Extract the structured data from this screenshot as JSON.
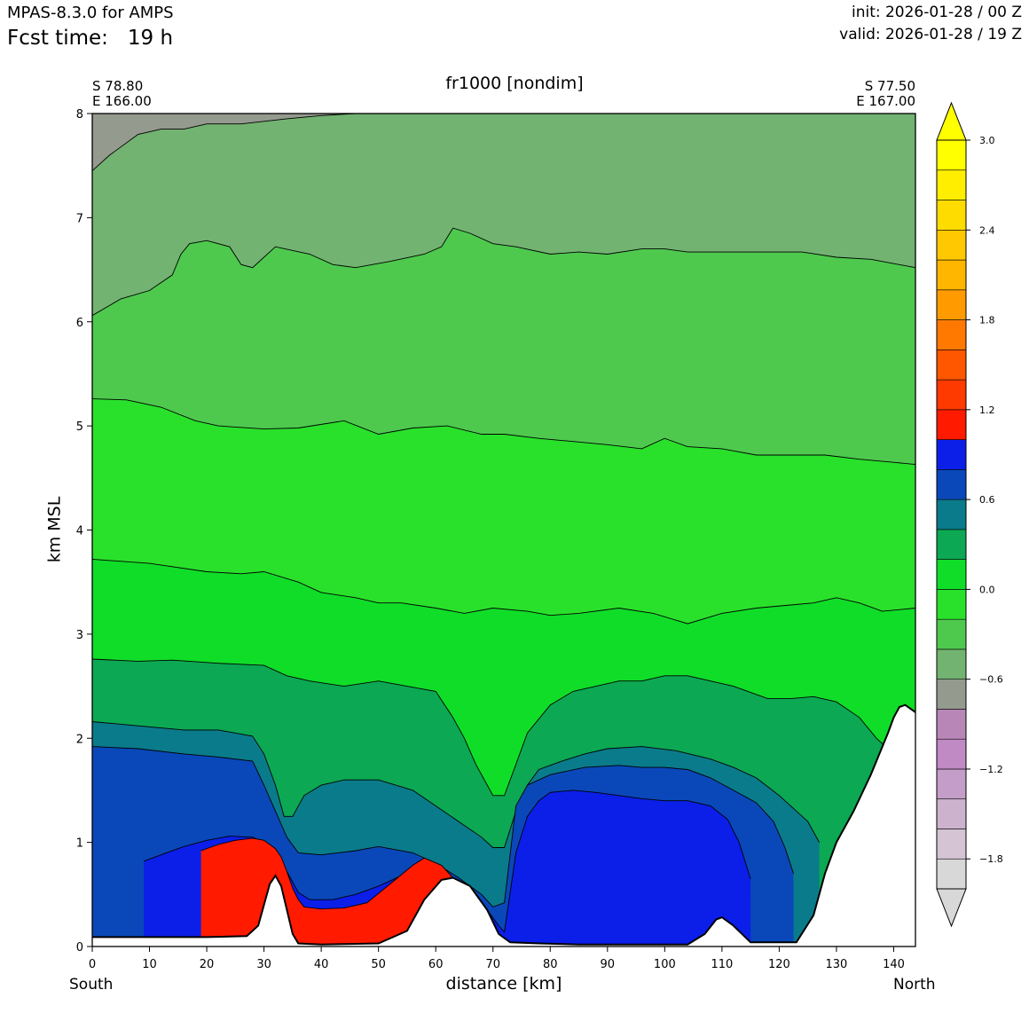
{
  "header": {
    "model": "MPAS-8.3.0 for AMPS",
    "fcst_label": "Fcst time:",
    "fcst_value": "19 h",
    "init": "init: 2026-01-28 / 00 Z",
    "valid": "valid: 2026-01-28 / 19 Z"
  },
  "endpoints": {
    "left_lat": "S 78.80",
    "left_lon": "E 166.00",
    "right_lat": "S 77.50",
    "right_lon": "E 167.00",
    "left_dir": "South",
    "right_dir": "North"
  },
  "chart_data": {
    "type": "contour-cross-section",
    "title": "fr1000 [nondim]",
    "xlabel": "distance [km]",
    "ylabel": "km MSL",
    "xlim": [
      0,
      143.8
    ],
    "ylim": [
      0,
      8
    ],
    "x_ticks": [
      0,
      10,
      20,
      30,
      40,
      50,
      60,
      70,
      80,
      90,
      100,
      110,
      120,
      130,
      140
    ],
    "y_ticks": [
      0,
      1,
      2,
      3,
      4,
      5,
      6,
      7,
      8
    ],
    "colorbar": {
      "levels": [
        -2.0,
        -1.8,
        -1.6,
        -1.4,
        -1.2,
        -1.0,
        -0.8,
        -0.6,
        -0.4,
        -0.2,
        0.0,
        0.2,
        0.4,
        0.6,
        0.8,
        1.0,
        1.2,
        1.4,
        1.6,
        1.8,
        2.0,
        2.2,
        2.4,
        2.6,
        2.8,
        3.0
      ],
      "tick_labels": [
        "−1.8",
        "−1.2",
        "−0.6",
        "0.0",
        "0.6",
        "1.2",
        "1.8",
        "2.4",
        "3.0"
      ],
      "tick_values": [
        -1.8,
        -1.2,
        -0.6,
        0.0,
        0.6,
        1.2,
        1.8,
        2.4,
        3.0
      ],
      "colors": [
        "#d8d8d8",
        "#d4c4d4",
        "#ccb2cc",
        "#c49ec8",
        "#c08ac4",
        "#b887b8",
        "#959a8f",
        "#72b371",
        "#4ec94e",
        "#29e12b",
        "#10dd28",
        "#0ca853",
        "#0a7b8a",
        "#0a48b9",
        "#0b1fe9",
        "#ff1a00",
        "#ff3a00",
        "#ff5700",
        "#ff7900",
        "#ff9a00",
        "#ffb600",
        "#ffc800",
        "#ffdc00",
        "#ffee00",
        "#ffff00"
      ],
      "under_color": "#d8d8d8",
      "over_color": "#ffff00"
    },
    "terrain": [
      [
        0,
        0.09
      ],
      [
        10,
        0.09
      ],
      [
        20,
        0.09
      ],
      [
        27,
        0.1
      ],
      [
        29,
        0.2
      ],
      [
        31,
        0.6
      ],
      [
        32,
        0.68
      ],
      [
        33,
        0.58
      ],
      [
        35,
        0.12
      ],
      [
        36,
        0.03
      ],
      [
        40,
        0.02
      ],
      [
        50,
        0.03
      ],
      [
        55,
        0.15
      ],
      [
        58,
        0.45
      ],
      [
        61,
        0.64
      ],
      [
        63,
        0.66
      ],
      [
        66,
        0.58
      ],
      [
        69,
        0.35
      ],
      [
        71,
        0.12
      ],
      [
        73,
        0.04
      ],
      [
        78,
        0.03
      ],
      [
        85,
        0.02
      ],
      [
        95,
        0.02
      ],
      [
        104,
        0.02
      ],
      [
        107,
        0.12
      ],
      [
        109,
        0.26
      ],
      [
        110,
        0.28
      ],
      [
        112,
        0.2
      ],
      [
        115,
        0.04
      ],
      [
        123,
        0.04
      ],
      [
        126,
        0.3
      ],
      [
        128,
        0.7
      ],
      [
        130,
        1.0
      ],
      [
        133,
        1.3
      ],
      [
        136,
        1.65
      ],
      [
        139,
        2.05
      ],
      [
        140,
        2.2
      ],
      [
        141,
        2.3
      ],
      [
        142,
        2.32
      ],
      [
        143.8,
        2.25
      ]
    ],
    "layers": [
      {
        "level": "-0.6",
        "color": "#959a8f",
        "top": [
          [
            0,
            8
          ],
          [
            143.8,
            8
          ]
        ]
      },
      {
        "level": "-0.4",
        "color": "#72b371",
        "top": [
          [
            0,
            7.45
          ],
          [
            3,
            7.6
          ],
          [
            8,
            7.8
          ],
          [
            12,
            7.85
          ],
          [
            16,
            7.85
          ],
          [
            20,
            7.9
          ],
          [
            26,
            7.9
          ],
          [
            34,
            7.95
          ],
          [
            40,
            7.98
          ],
          [
            46,
            8
          ],
          [
            143.8,
            8
          ]
        ]
      },
      {
        "level": "-0.2",
        "color": "#4ec94e",
        "top": [
          [
            0,
            6.06
          ],
          [
            5,
            6.22
          ],
          [
            10,
            6.3
          ],
          [
            14,
            6.45
          ],
          [
            15.5,
            6.65
          ],
          [
            17,
            6.75
          ],
          [
            20,
            6.78
          ],
          [
            24,
            6.72
          ],
          [
            26,
            6.55
          ],
          [
            28,
            6.52
          ],
          [
            32,
            6.72
          ],
          [
            38,
            6.65
          ],
          [
            42,
            6.55
          ],
          [
            46,
            6.52
          ],
          [
            52,
            6.58
          ],
          [
            58,
            6.65
          ],
          [
            61,
            6.72
          ],
          [
            63,
            6.9
          ],
          [
            66,
            6.85
          ],
          [
            70,
            6.75
          ],
          [
            74,
            6.72
          ],
          [
            80,
            6.65
          ],
          [
            85,
            6.67
          ],
          [
            90,
            6.65
          ],
          [
            96,
            6.7
          ],
          [
            100,
            6.7
          ],
          [
            104,
            6.67
          ],
          [
            110,
            6.67
          ],
          [
            116,
            6.67
          ],
          [
            124,
            6.67
          ],
          [
            130,
            6.62
          ],
          [
            136,
            6.6
          ],
          [
            143.8,
            6.52
          ]
        ]
      },
      {
        "level": "0.0",
        "color": "#29e12b",
        "top": [
          [
            0,
            5.26
          ],
          [
            6,
            5.25
          ],
          [
            12,
            5.18
          ],
          [
            18,
            5.05
          ],
          [
            22,
            5.0
          ],
          [
            30,
            4.97
          ],
          [
            36,
            4.98
          ],
          [
            44,
            5.05
          ],
          [
            50,
            4.92
          ],
          [
            56,
            4.98
          ],
          [
            62,
            5.0
          ],
          [
            68,
            4.92
          ],
          [
            72,
            4.92
          ],
          [
            78,
            4.88
          ],
          [
            84,
            4.85
          ],
          [
            90,
            4.82
          ],
          [
            96,
            4.78
          ],
          [
            100,
            4.88
          ],
          [
            104,
            4.8
          ],
          [
            110,
            4.78
          ],
          [
            116,
            4.72
          ],
          [
            122,
            4.72
          ],
          [
            128,
            4.72
          ],
          [
            134,
            4.68
          ],
          [
            140,
            4.65
          ],
          [
            143.8,
            4.63
          ]
        ]
      },
      {
        "level": "0.2",
        "color": "#10dd28",
        "top": [
          [
            0,
            3.72
          ],
          [
            10,
            3.68
          ],
          [
            20,
            3.6
          ],
          [
            26,
            3.58
          ],
          [
            30,
            3.6
          ],
          [
            36,
            3.5
          ],
          [
            40,
            3.4
          ],
          [
            46,
            3.35
          ],
          [
            50,
            3.3
          ],
          [
            54,
            3.3
          ],
          [
            60,
            3.25
          ],
          [
            65,
            3.2
          ],
          [
            70,
            3.25
          ],
          [
            76,
            3.22
          ],
          [
            80,
            3.18
          ],
          [
            85,
            3.2
          ],
          [
            92,
            3.25
          ],
          [
            98,
            3.2
          ],
          [
            104,
            3.1
          ],
          [
            110,
            3.2
          ],
          [
            116,
            3.25
          ],
          [
            122,
            3.28
          ],
          [
            126,
            3.3
          ],
          [
            130,
            3.35
          ],
          [
            134,
            3.3
          ],
          [
            138,
            3.22
          ],
          [
            143.8,
            3.25
          ]
        ]
      },
      {
        "level": "0.4",
        "color": "#0ca853",
        "top": [
          [
            0,
            2.76
          ],
          [
            8,
            2.74
          ],
          [
            14,
            2.75
          ],
          [
            22,
            2.72
          ],
          [
            30,
            2.7
          ],
          [
            34,
            2.6
          ],
          [
            38,
            2.55
          ],
          [
            44,
            2.5
          ],
          [
            50,
            2.55
          ],
          [
            55,
            2.5
          ],
          [
            60,
            2.45
          ],
          [
            63,
            2.2
          ],
          [
            65,
            2.0
          ],
          [
            67,
            1.75
          ],
          [
            70,
            1.45
          ],
          [
            72,
            1.45
          ],
          [
            74,
            1.75
          ],
          [
            76,
            2.05
          ],
          [
            80,
            2.32
          ],
          [
            84,
            2.45
          ],
          [
            88,
            2.5
          ],
          [
            92,
            2.55
          ],
          [
            96,
            2.55
          ],
          [
            100,
            2.6
          ],
          [
            104,
            2.6
          ],
          [
            108,
            2.55
          ],
          [
            112,
            2.5
          ],
          [
            118,
            2.38
          ],
          [
            122,
            2.38
          ],
          [
            126,
            2.4
          ],
          [
            130,
            2.35
          ],
          [
            134,
            2.2
          ],
          [
            137,
            2.0
          ],
          [
            139,
            1.9
          ],
          [
            141,
            2.05
          ],
          [
            143.8,
            2.05
          ]
        ]
      },
      {
        "level": "0.6",
        "color": "#0a7b8a",
        "top": [
          [
            0,
            2.16
          ],
          [
            8,
            2.12
          ],
          [
            16,
            2.08
          ],
          [
            22,
            2.08
          ],
          [
            28,
            2.02
          ],
          [
            30,
            1.85
          ],
          [
            32,
            1.55
          ],
          [
            33.5,
            1.25
          ],
          [
            35,
            1.25
          ],
          [
            37,
            1.45
          ],
          [
            40,
            1.55
          ],
          [
            44,
            1.6
          ],
          [
            50,
            1.6
          ],
          [
            56,
            1.5
          ],
          [
            60,
            1.35
          ],
          [
            64,
            1.2
          ],
          [
            68,
            1.05
          ],
          [
            70,
            0.95
          ],
          [
            72,
            0.95
          ],
          [
            74,
            1.3
          ],
          [
            76,
            1.55
          ],
          [
            78,
            1.7
          ],
          [
            82,
            1.78
          ],
          [
            86,
            1.85
          ],
          [
            90,
            1.9
          ],
          [
            96,
            1.92
          ],
          [
            102,
            1.88
          ],
          [
            108,
            1.8
          ],
          [
            112,
            1.72
          ],
          [
            116,
            1.62
          ],
          [
            120,
            1.45
          ],
          [
            123,
            1.3
          ],
          [
            125,
            1.2
          ],
          [
            126,
            1.1
          ],
          [
            127,
            1.0
          ]
        ]
      },
      {
        "level": "0.8",
        "color": "#0a48b9",
        "top": [
          [
            0,
            1.92
          ],
          [
            8,
            1.9
          ],
          [
            16,
            1.85
          ],
          [
            22,
            1.82
          ],
          [
            28,
            1.78
          ],
          [
            30,
            1.55
          ],
          [
            32,
            1.3
          ],
          [
            34,
            1.05
          ],
          [
            36,
            0.9
          ],
          [
            40,
            0.88
          ],
          [
            46,
            0.92
          ],
          [
            50,
            0.96
          ],
          [
            56,
            0.9
          ],
          [
            60,
            0.8
          ],
          [
            64,
            0.66
          ],
          [
            68,
            0.5
          ],
          [
            70,
            0.38
          ],
          [
            72,
            0.42
          ],
          [
            74,
            1.35
          ],
          [
            76,
            1.55
          ],
          [
            80,
            1.65
          ],
          [
            86,
            1.72
          ],
          [
            92,
            1.74
          ],
          [
            96,
            1.72
          ],
          [
            100,
            1.72
          ],
          [
            104,
            1.7
          ],
          [
            108,
            1.62
          ],
          [
            112,
            1.5
          ],
          [
            116,
            1.38
          ],
          [
            119,
            1.2
          ],
          [
            121,
            0.95
          ],
          [
            122.5,
            0.7
          ]
        ]
      },
      {
        "level": "1.0",
        "color": "#0b1fe9",
        "top": [
          [
            9,
            0.82
          ],
          [
            12,
            0.88
          ],
          [
            16,
            0.96
          ],
          [
            20,
            1.02
          ],
          [
            24,
            1.06
          ],
          [
            28,
            1.05
          ],
          [
            30,
            1.0
          ],
          [
            32,
            0.9
          ],
          [
            34,
            0.72
          ],
          [
            36,
            0.52
          ],
          [
            38,
            0.45
          ],
          [
            42,
            0.45
          ],
          [
            46,
            0.5
          ],
          [
            50,
            0.58
          ],
          [
            54,
            0.68
          ],
          [
            58,
            0.75
          ],
          [
            60,
            0.72
          ],
          [
            63,
            0.62
          ],
          [
            66,
            0.5
          ],
          [
            69,
            0.35
          ],
          [
            71,
            0.2
          ],
          [
            72,
            0.14
          ],
          [
            74,
            0.9
          ],
          [
            76,
            1.25
          ],
          [
            78,
            1.4
          ],
          [
            80,
            1.48
          ],
          [
            84,
            1.5
          ],
          [
            88,
            1.48
          ],
          [
            92,
            1.45
          ],
          [
            96,
            1.42
          ],
          [
            100,
            1.4
          ],
          [
            104,
            1.4
          ],
          [
            108,
            1.35
          ],
          [
            111,
            1.22
          ],
          [
            113,
            1.0
          ],
          [
            115,
            0.65
          ]
        ]
      },
      {
        "level": "1.2",
        "color": "#ff1a00",
        "top": [
          [
            19,
            0.92
          ],
          [
            22,
            0.98
          ],
          [
            25,
            1.02
          ],
          [
            28,
            1.04
          ],
          [
            30,
            1.02
          ],
          [
            31,
            0.98
          ],
          [
            32,
            0.94
          ],
          [
            33,
            0.86
          ],
          [
            34,
            0.72
          ],
          [
            35,
            0.56
          ],
          [
            36,
            0.45
          ],
          [
            37,
            0.38
          ],
          [
            40,
            0.36
          ],
          [
            44,
            0.37
          ],
          [
            48,
            0.42
          ],
          [
            52,
            0.6
          ],
          [
            56,
            0.78
          ],
          [
            58,
            0.85
          ],
          [
            61,
            0.78
          ],
          [
            64,
            0.6
          ],
          [
            67,
            0.35
          ],
          [
            69,
            0.2
          ],
          [
            70,
            0.18
          ]
        ]
      }
    ]
  }
}
